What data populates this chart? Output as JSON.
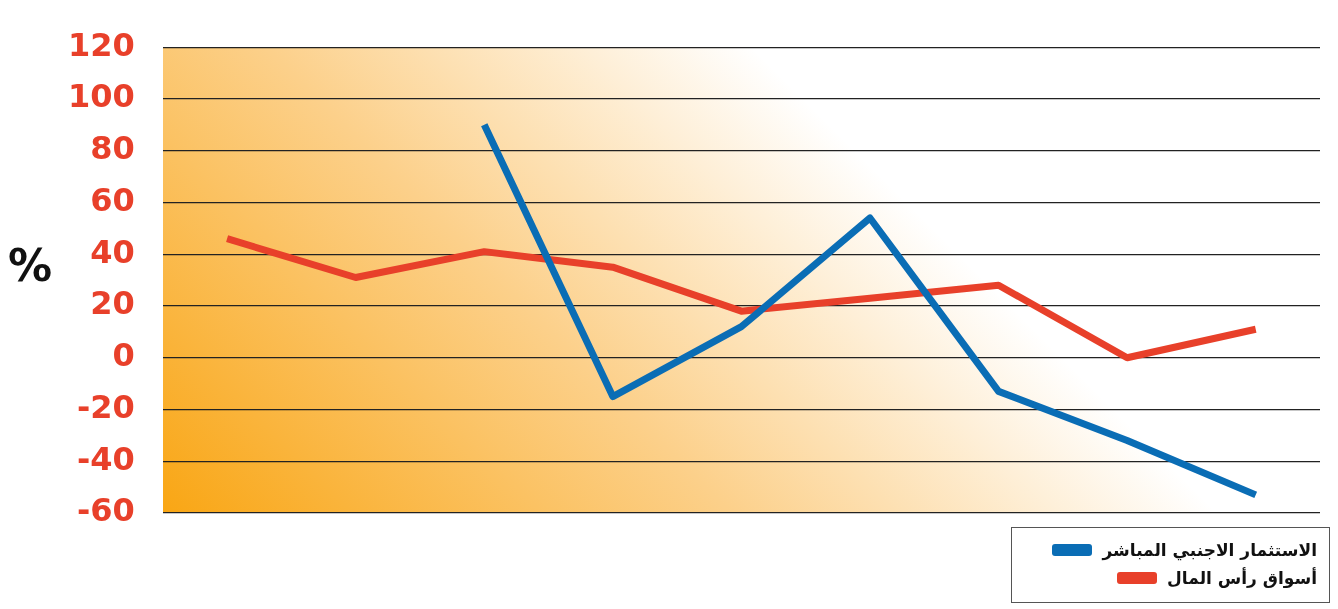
{
  "chart_data": {
    "type": "line",
    "ylabel": "%",
    "categories": [
      null,
      null,
      null,
      null,
      null,
      null,
      null,
      null,
      null
    ],
    "series": [
      {
        "name": "الاستثمار الاجنبي المباشر",
        "color": "#0a6db5",
        "values": [
          null,
          null,
          90,
          -15,
          12,
          54,
          -13,
          -32,
          -53
        ]
      },
      {
        "name": "أسواق رأس المال",
        "color": "#e8402a",
        "values": [
          46,
          31,
          41,
          35,
          18,
          23,
          28,
          0,
          11
        ]
      }
    ],
    "ylim": [
      -60,
      120
    ],
    "yticks": [
      -60,
      -40,
      -20,
      0,
      20,
      40,
      60,
      80,
      100,
      120
    ],
    "grid": "y",
    "legend": "bottom right",
    "tick_labels": "y",
    "marker": "none",
    "line_style": "solid"
  }
}
